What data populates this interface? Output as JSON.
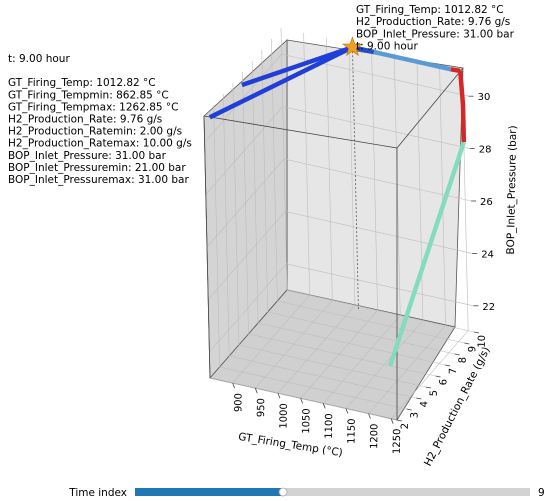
{
  "chart_data": {
    "type": "line3d",
    "axes": {
      "x": {
        "label": "GT_Firing_Temp (°C)",
        "ticks": [
          "900",
          "950",
          "1000",
          "1050",
          "1100",
          "1150",
          "1200",
          "1250"
        ]
      },
      "y": {
        "label": "H2_Production_Rate (g/s)",
        "ticks": [
          "2",
          "3",
          "4",
          "5",
          "6",
          "7",
          "8",
          "9",
          "10"
        ]
      },
      "z": {
        "label": "BOP_Inlet_Pressure (bar)",
        "ticks": [
          "22",
          "24",
          "26",
          "28",
          "30"
        ]
      }
    },
    "series": [
      {
        "color": "#85dcbc",
        "points": [
          [
            1250,
            2.0,
            23.0
          ],
          [
            1250,
            10.0,
            28.2
          ]
        ]
      },
      {
        "color": "#d62728",
        "points": [
          [
            1250,
            10.0,
            28.2
          ],
          [
            1250,
            10.0,
            29.6
          ],
          [
            1250,
            9.8,
            31.0
          ]
        ]
      },
      {
        "color": "#d62728",
        "points": [
          [
            1250,
            9.8,
            31.0
          ],
          [
            1230,
            9.76,
            31.0
          ]
        ]
      },
      {
        "color": "#5b9bd5",
        "points": [
          [
            1230,
            9.76,
            31.0
          ],
          [
            1060,
            9.76,
            31.0
          ]
        ]
      },
      {
        "color": "#2050c8",
        "points": [
          [
            1060,
            9.76,
            31.0
          ],
          [
            1012.82,
            9.76,
            31.0
          ]
        ]
      },
      {
        "color": "#1f3fd8",
        "points": [
          [
            1012.82,
            9.76,
            31.0
          ],
          [
            862.85,
            2.0,
            31.0
          ]
        ]
      },
      {
        "color": "#1f3fd8",
        "points": [
          [
            1012.82,
            9.76,
            31.0
          ],
          [
            870,
            5.0,
            31.0
          ]
        ]
      }
    ],
    "current_point": {
      "x": 1012.82,
      "y": 9.76,
      "z": 31.0,
      "color": "#f0a020"
    },
    "hover_annotation": [
      "GT_Firing_Temp: 1012.82 °C",
      "H2_Production_Rate: 9.76 g/s",
      "BOP_Inlet_Pressure: 31.00 bar",
      "t: 9.00 hour"
    ],
    "info_panel": [
      "t: 9.00 hour",
      "",
      "GT_Firing_Temp: 1012.82 °C",
      "GT_Firing_Tempmin: 862.85 °C",
      "GT_Firing_Tempmax: 1262.85 °C",
      "H2_Production_Rate: 9.76 g/s",
      "H2_Production_Ratemin: 2.00 g/s",
      "H2_Production_Ratemax: 10.00 g/s",
      "BOP_Inlet_Pressure: 31.00 bar",
      "BOP_Inlet_Pressuremin: 21.00 bar",
      "BOP_Inlet_Pressuremax: 31.00 bar"
    ]
  },
  "slider": {
    "label": "Time index",
    "value_text": "9",
    "fraction": 0.375,
    "fill_color": "#1f77b4"
  }
}
